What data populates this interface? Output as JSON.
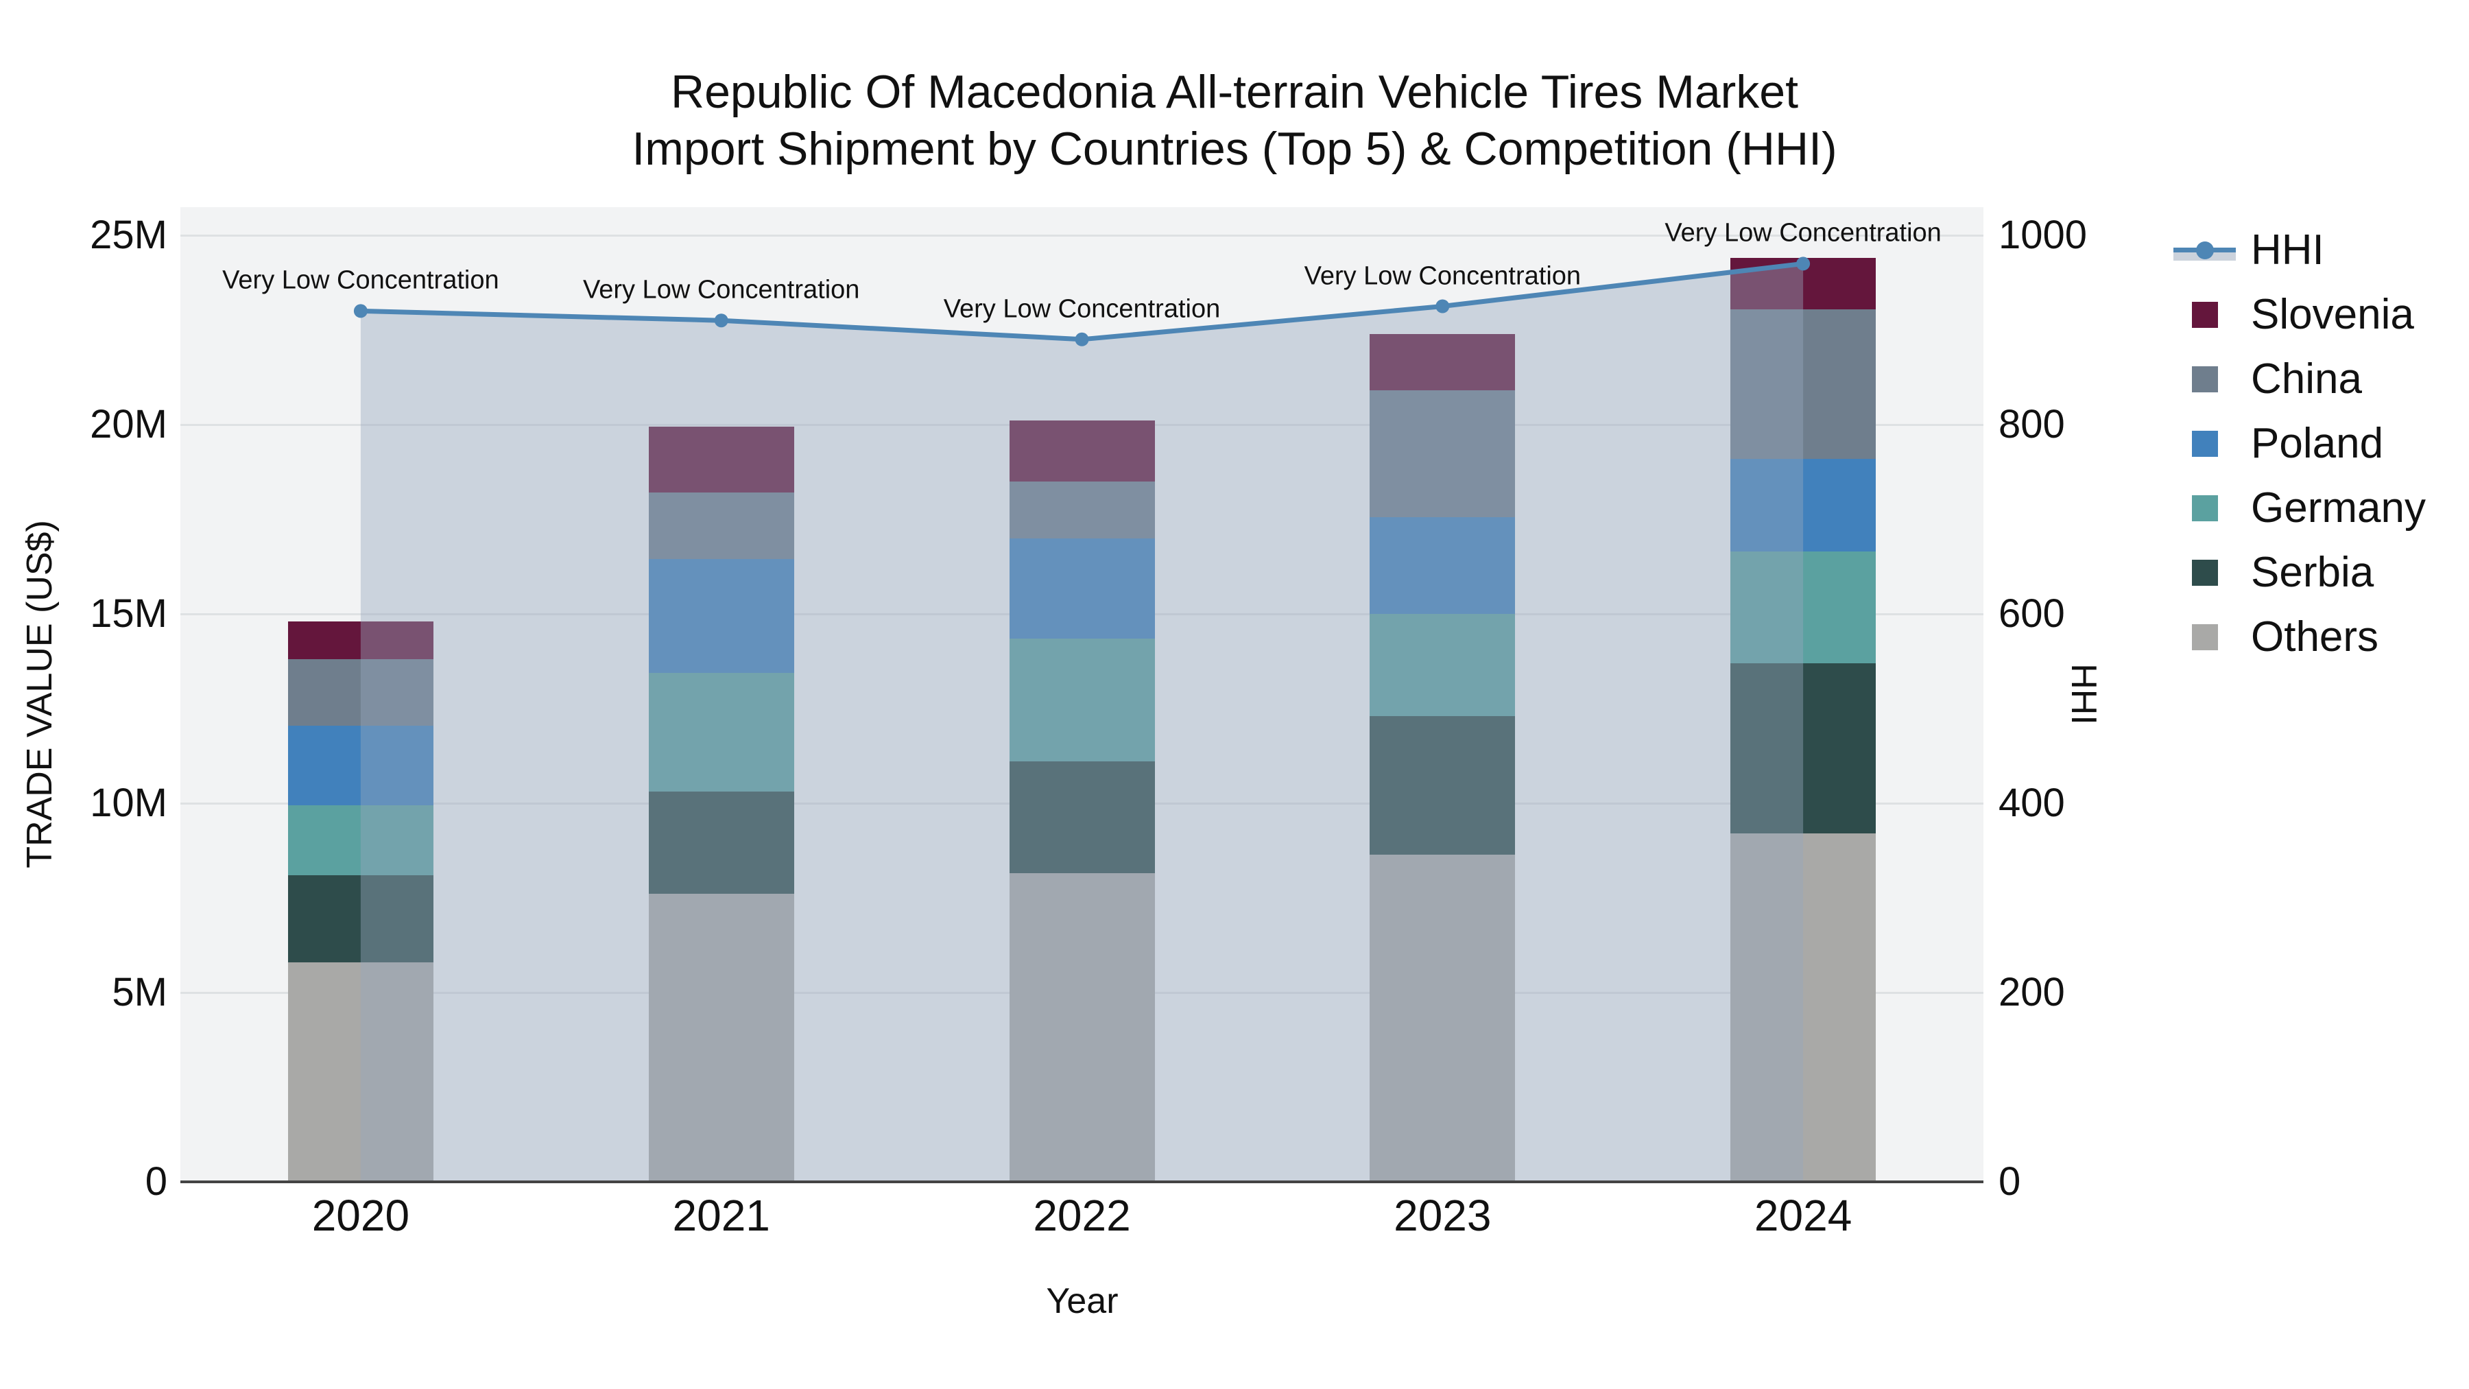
{
  "title": {
    "line1": "Republic Of Macedonia All-terrain Vehicle Tires Market",
    "line2": "Import Shipment by Countries (Top 5) & Competition (HHI)"
  },
  "axes": {
    "x": {
      "title": "Year",
      "categories": [
        "2020",
        "2021",
        "2022",
        "2023",
        "2024"
      ]
    },
    "y_left": {
      "title": "TRADE VALUE (US$)",
      "tick_labels": [
        "0",
        "5M",
        "10M",
        "15M",
        "20M",
        "25M"
      ],
      "tick_values_m": [
        0,
        5,
        10,
        15,
        20,
        25
      ],
      "range_m": [
        0,
        25
      ]
    },
    "y_right": {
      "title": "HHI",
      "tick_labels": [
        "0",
        "200",
        "400",
        "600",
        "800",
        "1000"
      ],
      "tick_values": [
        0,
        200,
        400,
        600,
        800,
        1000
      ],
      "range": [
        0,
        1000
      ]
    }
  },
  "legend": {
    "position": "top-right",
    "order": [
      "HHI",
      "Slovenia",
      "China",
      "Poland",
      "Germany",
      "Serbia",
      "Others"
    ]
  },
  "chart_data": {
    "type": "bar",
    "subtype": "stacked-bars-with-hhi-line-and-area-fill",
    "categories": [
      "2020",
      "2021",
      "2022",
      "2023",
      "2024"
    ],
    "value_unit": "million US$",
    "stack_order_bottom_to_top": [
      "Others",
      "Serbia",
      "Germany",
      "Poland",
      "China",
      "Slovenia"
    ],
    "series": [
      {
        "name": "Slovenia",
        "color": "#64163c",
        "values_m": [
          1.0,
          1.75,
          1.6,
          1.5,
          1.35
        ]
      },
      {
        "name": "China",
        "color": "#6f7e8d",
        "values_m": [
          1.75,
          1.75,
          1.5,
          3.35,
          3.95
        ]
      },
      {
        "name": "Poland",
        "color": "#4181bc",
        "values_m": [
          2.1,
          3.0,
          2.65,
          2.55,
          2.45
        ]
      },
      {
        "name": "Germany",
        "color": "#5ba1a0",
        "values_m": [
          1.85,
          3.15,
          3.25,
          2.7,
          2.95
        ]
      },
      {
        "name": "Serbia",
        "color": "#2e4c4b",
        "values_m": [
          2.3,
          2.7,
          2.95,
          3.65,
          4.5
        ]
      },
      {
        "name": "Others",
        "color": "#a9a9a7",
        "values_m": [
          5.8,
          7.6,
          8.15,
          8.65,
          9.2
        ]
      }
    ],
    "totals_m": [
      14.8,
      19.95,
      20.1,
      22.4,
      24.4
    ],
    "line": {
      "name": "HHI",
      "axis": "y_right",
      "color": "#4e86b5",
      "fill_color": "rgba(151,166,188,0.42)",
      "values": [
        920,
        910,
        890,
        925,
        970
      ]
    },
    "annotations": [
      {
        "category": "2020",
        "text": "Very Low Concentration"
      },
      {
        "category": "2021",
        "text": "Very Low Concentration"
      },
      {
        "category": "2022",
        "text": "Very Low Concentration"
      },
      {
        "category": "2023",
        "text": "Very Low Concentration"
      },
      {
        "category": "2024",
        "text": "Very Low Concentration"
      },
      {
        "category": "2024",
        "text": ""
      }
    ],
    "ylim_left_m": [
      0,
      25
    ],
    "ylim_right": [
      0,
      1000
    ],
    "grid": "horizontal",
    "legend_position": "right-top",
    "colors": {
      "plot_bg": "#f2f3f4",
      "figure_bg": "#ffffff",
      "gridline": "rgba(95,105,115,0.13)",
      "axis_line": "#444444",
      "text": "#111111"
    }
  }
}
